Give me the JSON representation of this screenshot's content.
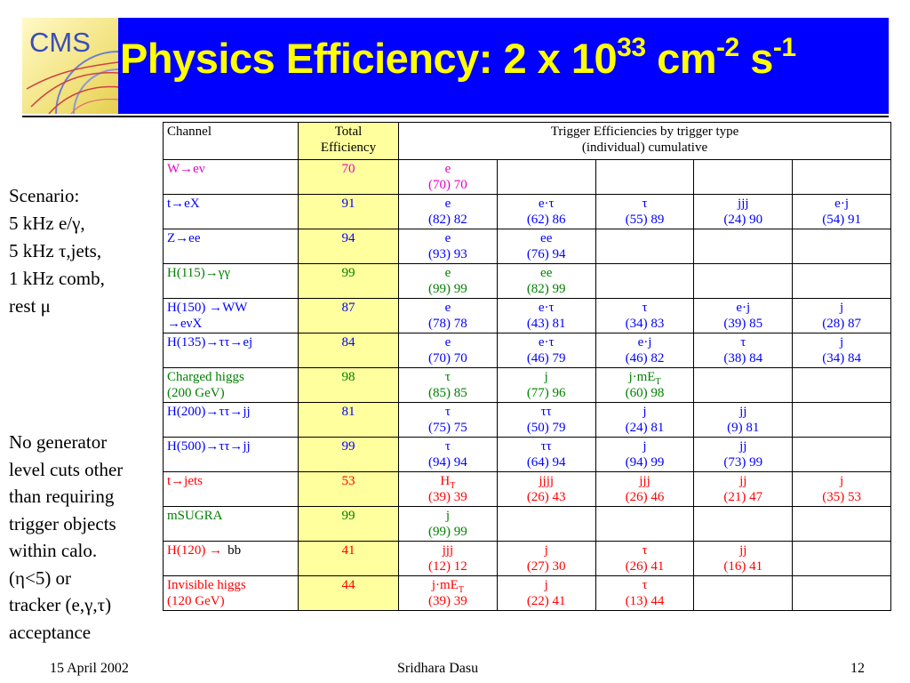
{
  "slide": {
    "title_main": "Physics Efficiency: 2 x 10",
    "title_exp1": "33",
    "title_unit1": " cm",
    "title_exp2": "-2",
    "title_unit2": " s",
    "title_exp3": "-1",
    "logo_text": "CMS"
  },
  "sidebar": {
    "lines": [
      "Scenario:",
      "5 kHz e/γ,",
      "5 kHz τ,jets,",
      "1 kHz comb,",
      "rest μ"
    ],
    "note_lines": [
      "No generator",
      "level cuts other",
      "than requiring",
      "trigger objects",
      "within calo.",
      "(η<5) or",
      "tracker (e,γ,τ)",
      "acceptance"
    ]
  },
  "table": {
    "header": {
      "channel": "Channel",
      "total_line1": "Total",
      "total_line2": "Efficiency",
      "trigger_line1": "Trigger Efficiencies by trigger type",
      "trigger_line2": "(individual) cumulative"
    },
    "rows": [
      {
        "color": "magenta",
        "channel": [
          "W→eν"
        ],
        "total": "70",
        "triggers": [
          {
            "type": "e",
            "eff": "(70) 70"
          }
        ]
      },
      {
        "color": "blue",
        "channel": [
          "t→eX"
        ],
        "total": "91",
        "triggers": [
          {
            "type": "e",
            "eff": "(82) 82"
          },
          {
            "type": "e·τ",
            "eff": "(62) 86"
          },
          {
            "type": "τ",
            "eff": "(55) 89"
          },
          {
            "type": "jjj",
            "eff": "(24) 90"
          },
          {
            "type": "e·j",
            "eff": "(54) 91"
          }
        ]
      },
      {
        "color": "blue",
        "channel": [
          "Z→ee"
        ],
        "total": "94",
        "triggers": [
          {
            "type": "e",
            "eff": "(93) 93"
          },
          {
            "type": "ee",
            "eff": "(76) 94"
          }
        ]
      },
      {
        "color": "green",
        "channel": [
          "H(115)→γγ"
        ],
        "total": "99",
        "triggers": [
          {
            "type": "e",
            "eff": "(99) 99"
          },
          {
            "type": "ee",
            "eff": "(82) 99"
          }
        ]
      },
      {
        "color": "blue",
        "channel": [
          "H(150) →WW",
          "→eνX"
        ],
        "total": "87",
        "triggers": [
          {
            "type": "e",
            "eff": "(78) 78"
          },
          {
            "type": "e·τ",
            "eff": "(43) 81"
          },
          {
            "type": "τ",
            "eff": "(34) 83"
          },
          {
            "type": "e·j",
            "eff": "(39) 85"
          },
          {
            "type": "j",
            "eff": "(28) 87"
          }
        ]
      },
      {
        "color": "blue",
        "channel": [
          "H(135)→ττ→ej"
        ],
        "total": "84",
        "triggers": [
          {
            "type": "e",
            "eff": "(70) 70"
          },
          {
            "type": "e·τ",
            "eff": "(46) 79"
          },
          {
            "type": "e·j",
            "eff": "(46) 82"
          },
          {
            "type": "τ",
            "eff": "(38) 84"
          },
          {
            "type": "j",
            "eff": "(34) 84"
          }
        ]
      },
      {
        "color": "green",
        "channel": [
          "Charged higgs",
          "(200 GeV)"
        ],
        "total": "98",
        "triggers": [
          {
            "type": "τ",
            "eff": "(85) 85"
          },
          {
            "type": "j",
            "eff": "(77) 96"
          },
          {
            "type": "j·mE",
            "sub": "T",
            "eff": "(60) 98"
          }
        ]
      },
      {
        "color": "blue",
        "channel": [
          "H(200)→ττ→jj"
        ],
        "total": "81",
        "triggers": [
          {
            "type": "τ",
            "eff": "(75) 75"
          },
          {
            "type": "ττ",
            "eff": "(50) 79"
          },
          {
            "type": "j",
            "eff": "(24) 81"
          },
          {
            "type": "jj",
            "eff": "(9) 81"
          }
        ]
      },
      {
        "color": "blue",
        "channel": [
          "H(500)→ττ→jj"
        ],
        "total": "99",
        "triggers": [
          {
            "type": "τ",
            "eff": "(94) 94"
          },
          {
            "type": "ττ",
            "eff": "(64) 94"
          },
          {
            "type": "j",
            "eff": "(94) 99"
          },
          {
            "type": "jj",
            "eff": "(73) 99"
          }
        ]
      },
      {
        "color": "red",
        "channel": [
          "t→jets"
        ],
        "total": "53",
        "triggers": [
          {
            "type": "H",
            "sub": "T",
            "eff": "(39) 39"
          },
          {
            "type": "jjjj",
            "eff": "(26) 43"
          },
          {
            "type": "jjj",
            "eff": "(26) 46"
          },
          {
            "type": "jj",
            "eff": "(21) 47"
          },
          {
            "type": "j",
            "eff": "(35) 53"
          }
        ]
      },
      {
        "color": "green",
        "channel": [
          "mSUGRA"
        ],
        "total": "99",
        "triggers": [
          {
            "type": "j",
            "eff": "(99) 99"
          }
        ]
      },
      {
        "color": "red",
        "channel": [
          "H(120) →"
        ],
        "channel_extra": "bb",
        "total": "41",
        "triggers": [
          {
            "type": "jjj",
            "eff": "(12) 12"
          },
          {
            "type": "j",
            "eff": "(27) 30"
          },
          {
            "type": "τ",
            "eff": "(26) 41"
          },
          {
            "type": "jj",
            "eff": "(16) 41"
          }
        ]
      },
      {
        "color": "red",
        "channel": [
          "Invisible higgs",
          "(120 GeV)"
        ],
        "total": "44",
        "triggers": [
          {
            "type": "j·mE",
            "sub": "T",
            "eff": "(39) 39"
          },
          {
            "type": "j",
            "eff": "(22) 41"
          },
          {
            "type": "τ",
            "eff": "(13) 44"
          }
        ]
      }
    ]
  },
  "footer": {
    "date": "15 April 2002",
    "author": "Sridhara Dasu",
    "page": "12"
  }
}
